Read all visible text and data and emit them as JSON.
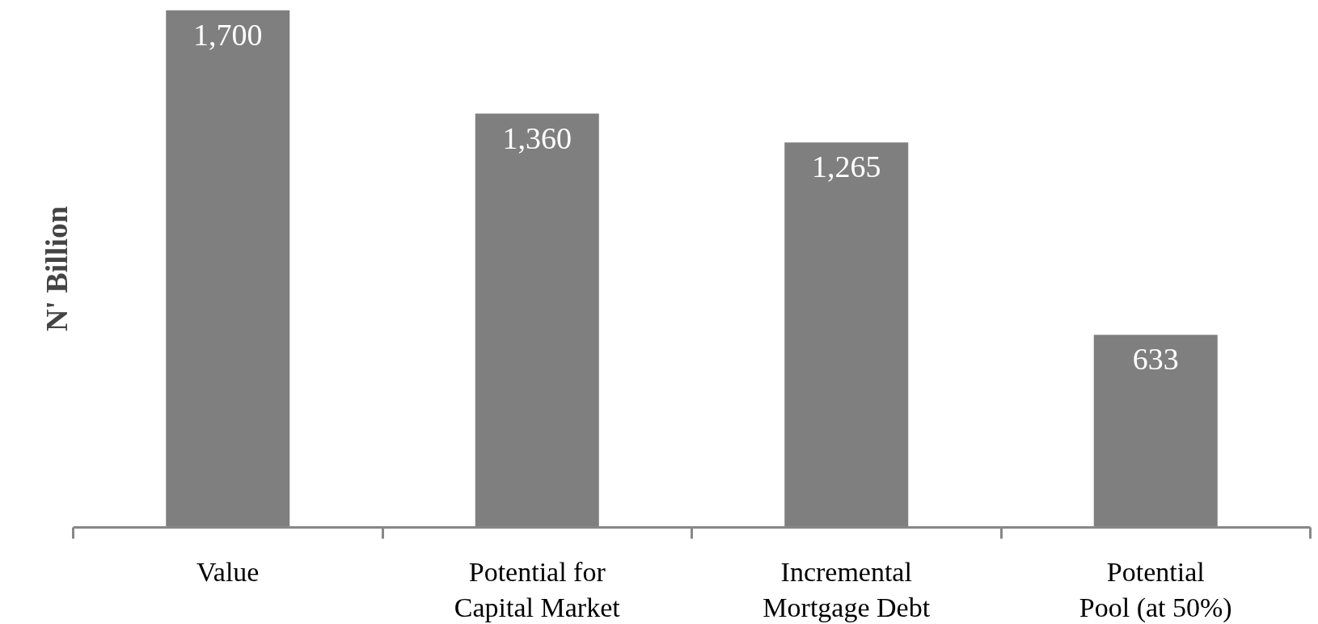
{
  "chart_data": {
    "type": "bar",
    "ylabel": "N' Billion",
    "categories": [
      "Value",
      "Potential for\nCapital Market",
      "Incremental\nMortgage Debt",
      "Potential\nPool (at 50%)"
    ],
    "values": [
      1700,
      1360,
      1265,
      633
    ],
    "color": "#7f7f7f",
    "value_labels": [
      "1,700",
      "1,360",
      "1,265",
      "633"
    ],
    "grid": false
  }
}
